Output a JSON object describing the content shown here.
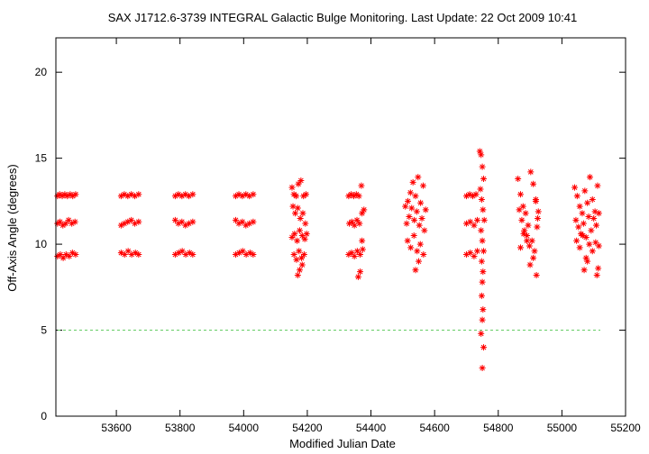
{
  "chart_data": {
    "type": "scatter",
    "title": "SAX J1712.6-3739   INTEGRAL Galactic Bulge Monitoring.  Last Update: 22 Oct 2009 10:41",
    "xlabel": "Modified Julian Date",
    "ylabel": "Off-Axis Angle (degrees)",
    "xlim": [
      53410,
      55200
    ],
    "ylim": [
      0,
      22
    ],
    "xticks": [
      "53600",
      "53800",
      "54000",
      "54200",
      "54400",
      "54600",
      "54800",
      "55000",
      "55200"
    ],
    "yticks": [
      "0",
      "5",
      "10",
      "15",
      "20"
    ],
    "grid": false,
    "marker": "star",
    "colors": {
      "points": "#ff0000",
      "reference_line": "#66cc66"
    },
    "reference_line": {
      "y": 5,
      "style": "dashed"
    },
    "series": [
      {
        "x": [
          53415,
          53422,
          53430,
          53438,
          53446,
          53455,
          53463,
          53472,
          53415,
          53423,
          53432,
          53441,
          53450,
          53460,
          53470,
          53415,
          53424,
          53433,
          53442,
          53452,
          53462,
          53472,
          53615,
          53625,
          53636,
          53647,
          53658,
          53670,
          53615,
          53625,
          53636,
          53647,
          53658,
          53670,
          53615,
          53626,
          53637,
          53648,
          53660,
          53670,
          53785,
          53795,
          53806,
          53817,
          53828,
          53840,
          53785,
          53795,
          53806,
          53817,
          53828,
          53840,
          53785,
          53796,
          53807,
          53818,
          53830,
          53840,
          53975,
          53985,
          53996,
          54007,
          54018,
          54030,
          53975,
          53985,
          53996,
          54007,
          54018,
          54030,
          53975,
          53986,
          53997,
          54008,
          54020,
          54030,
          54152,
          54158,
          54165,
          54172,
          54180,
          54188,
          54196,
          54155,
          54162,
          54170,
          54178,
          54186,
          54194,
          54152,
          54160,
          54168,
          54176,
          54184,
          54192,
          54198,
          54158,
          54166,
          54174,
          54182,
          54190,
          54170,
          54176,
          54184,
          54330,
          54338,
          54346,
          54354,
          54362,
          54370,
          54332,
          54340,
          54348,
          54356,
          54364,
          54372,
          54330,
          54339,
          54348,
          54357,
          54366,
          54374,
          54360,
          54366,
          54372,
          54378,
          54508,
          54516,
          54524,
          54532,
          54540,
          54548,
          54556,
          54564,
          54572,
          54512,
          54520,
          54528,
          54536,
          54544,
          54552,
          54560,
          54568,
          54515,
          54525,
          54535,
          54545,
          54555,
          54565,
          54540,
          54550,
          54700,
          54710,
          54720,
          54730,
          54700,
          54712,
          54724,
          54734,
          54700,
          54712,
          54724,
          54734,
          54742,
          54746,
          54750,
          54754,
          54744,
          54748,
          54752,
          54756,
          54746,
          54750,
          54754,
          54748,
          54752,
          54750,
          54748,
          54752,
          54750,
          54746,
          54754,
          54750,
          54862,
          54870,
          54878,
          54886,
          54894,
          54902,
          54910,
          54918,
          54926,
          54866,
          54874,
          54882,
          54890,
          54898,
          54906,
          54914,
          54922,
          54870,
          54880,
          54890,
          54900,
          54910,
          54920,
          54918,
          54924,
          55040,
          55048,
          55056,
          55064,
          55072,
          55080,
          55088,
          55096,
          55104,
          55112,
          55044,
          55052,
          55060,
          55068,
          55076,
          55084,
          55092,
          55100,
          55108,
          55116,
          55046,
          55056,
          55066,
          55076,
          55086,
          55096,
          55106,
          55116,
          55070,
          55080,
          55110,
          55114
        ],
        "y": [
          12.8,
          12.9,
          12.8,
          12.9,
          12.8,
          12.9,
          12.8,
          12.9,
          11.2,
          11.3,
          11.1,
          11.2,
          11.4,
          11.2,
          11.3,
          9.3,
          9.4,
          9.2,
          9.4,
          9.3,
          9.5,
          9.4,
          12.8,
          12.9,
          12.8,
          12.9,
          12.8,
          12.9,
          11.1,
          11.2,
          11.3,
          11.4,
          11.2,
          11.3,
          9.5,
          9.4,
          9.6,
          9.4,
          9.5,
          9.4,
          12.8,
          12.9,
          12.8,
          12.9,
          12.8,
          12.9,
          11.4,
          11.2,
          11.3,
          11.1,
          11.2,
          11.3,
          9.4,
          9.5,
          9.6,
          9.4,
          9.5,
          9.4,
          12.8,
          12.9,
          12.8,
          12.9,
          12.8,
          12.9,
          11.4,
          11.2,
          11.3,
          11.1,
          11.2,
          11.3,
          9.4,
          9.5,
          9.6,
          9.4,
          9.5,
          9.4,
          13.3,
          12.9,
          12.8,
          13.5,
          13.7,
          12.8,
          12.9,
          12.2,
          11.8,
          12.1,
          11.5,
          11.8,
          11.2,
          10.4,
          10.6,
          10.2,
          10.8,
          10.5,
          10.3,
          10.6,
          9.4,
          9.1,
          9.6,
          9.2,
          9.4,
          8.2,
          8.5,
          8.8,
          12.8,
          12.9,
          12.8,
          12.9,
          12.8,
          13.4,
          11.2,
          11.3,
          11.1,
          11.4,
          11.2,
          11.8,
          9.4,
          9.5,
          9.3,
          9.6,
          9.4,
          9.7,
          8.1,
          8.4,
          10.2,
          12.0,
          12.2,
          12.5,
          13.0,
          13.6,
          12.8,
          13.9,
          12.4,
          13.4,
          12.0,
          11.2,
          11.6,
          12.1,
          11.4,
          11.9,
          11.1,
          11.5,
          10.8,
          10.2,
          9.8,
          10.5,
          9.6,
          10.0,
          9.4,
          8.5,
          9.0,
          12.8,
          12.9,
          12.8,
          12.9,
          11.2,
          11.3,
          11.1,
          11.4,
          9.4,
          9.5,
          9.3,
          9.6,
          15.4,
          15.2,
          14.5,
          13.8,
          13.2,
          12.6,
          12.0,
          11.4,
          10.8,
          10.2,
          9.6,
          9.0,
          8.4,
          7.8,
          7.0,
          6.2,
          5.6,
          4.8,
          4.0,
          2.8,
          13.8,
          12.9,
          12.2,
          11.8,
          11.1,
          14.2,
          13.5,
          12.6,
          11.9,
          12.0,
          11.4,
          10.8,
          10.5,
          9.9,
          10.2,
          9.6,
          11.0,
          9.8,
          10.6,
          10.2,
          8.8,
          9.2,
          8.2,
          12.5,
          11.5,
          13.3,
          12.8,
          12.2,
          11.8,
          13.1,
          12.4,
          13.9,
          12.6,
          11.9,
          13.4,
          11.4,
          11.0,
          10.6,
          11.2,
          10.4,
          11.6,
          10.8,
          11.5,
          11.1,
          11.8,
          10.2,
          9.8,
          10.5,
          9.2,
          10.0,
          9.6,
          10.1,
          9.9,
          8.5,
          9.0,
          8.2,
          8.6
        ]
      }
    ]
  }
}
